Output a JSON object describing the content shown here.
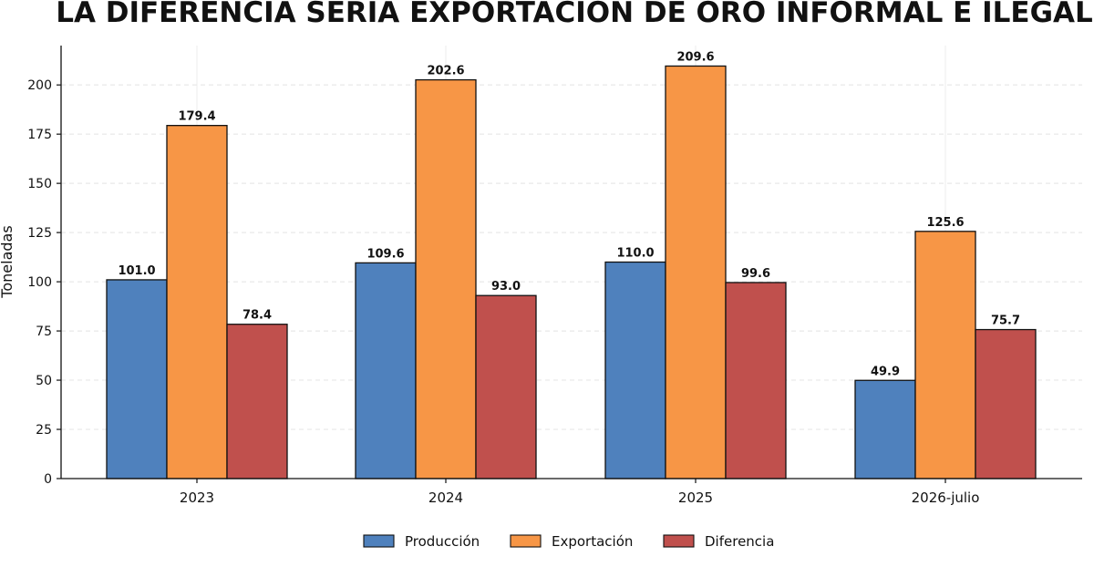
{
  "chart_data": {
    "type": "bar",
    "title": "LA DIFERENCIA SERÍA EXPORTACIÓN DE ORO INFORMAL E ILEGAL",
    "xlabel": "",
    "ylabel": "Toneladas",
    "categories": [
      "2023",
      "2024",
      "2025",
      "2026-julio"
    ],
    "series": [
      {
        "name": "Producción",
        "values": [
          101.0,
          109.6,
          110.0,
          49.9
        ],
        "color": "#4f81bd"
      },
      {
        "name": "Exportación",
        "values": [
          179.4,
          202.6,
          209.6,
          125.6
        ],
        "color": "#f79646"
      },
      {
        "name": "Diferencia",
        "values": [
          78.4,
          93.0,
          99.6,
          75.7
        ],
        "color": "#c0504d"
      }
    ],
    "yticks": [
      0,
      25,
      50,
      75,
      100,
      125,
      150,
      175,
      200
    ],
    "ylim": [
      0,
      220
    ],
    "grid": true,
    "legend_position": "bottom-center"
  }
}
